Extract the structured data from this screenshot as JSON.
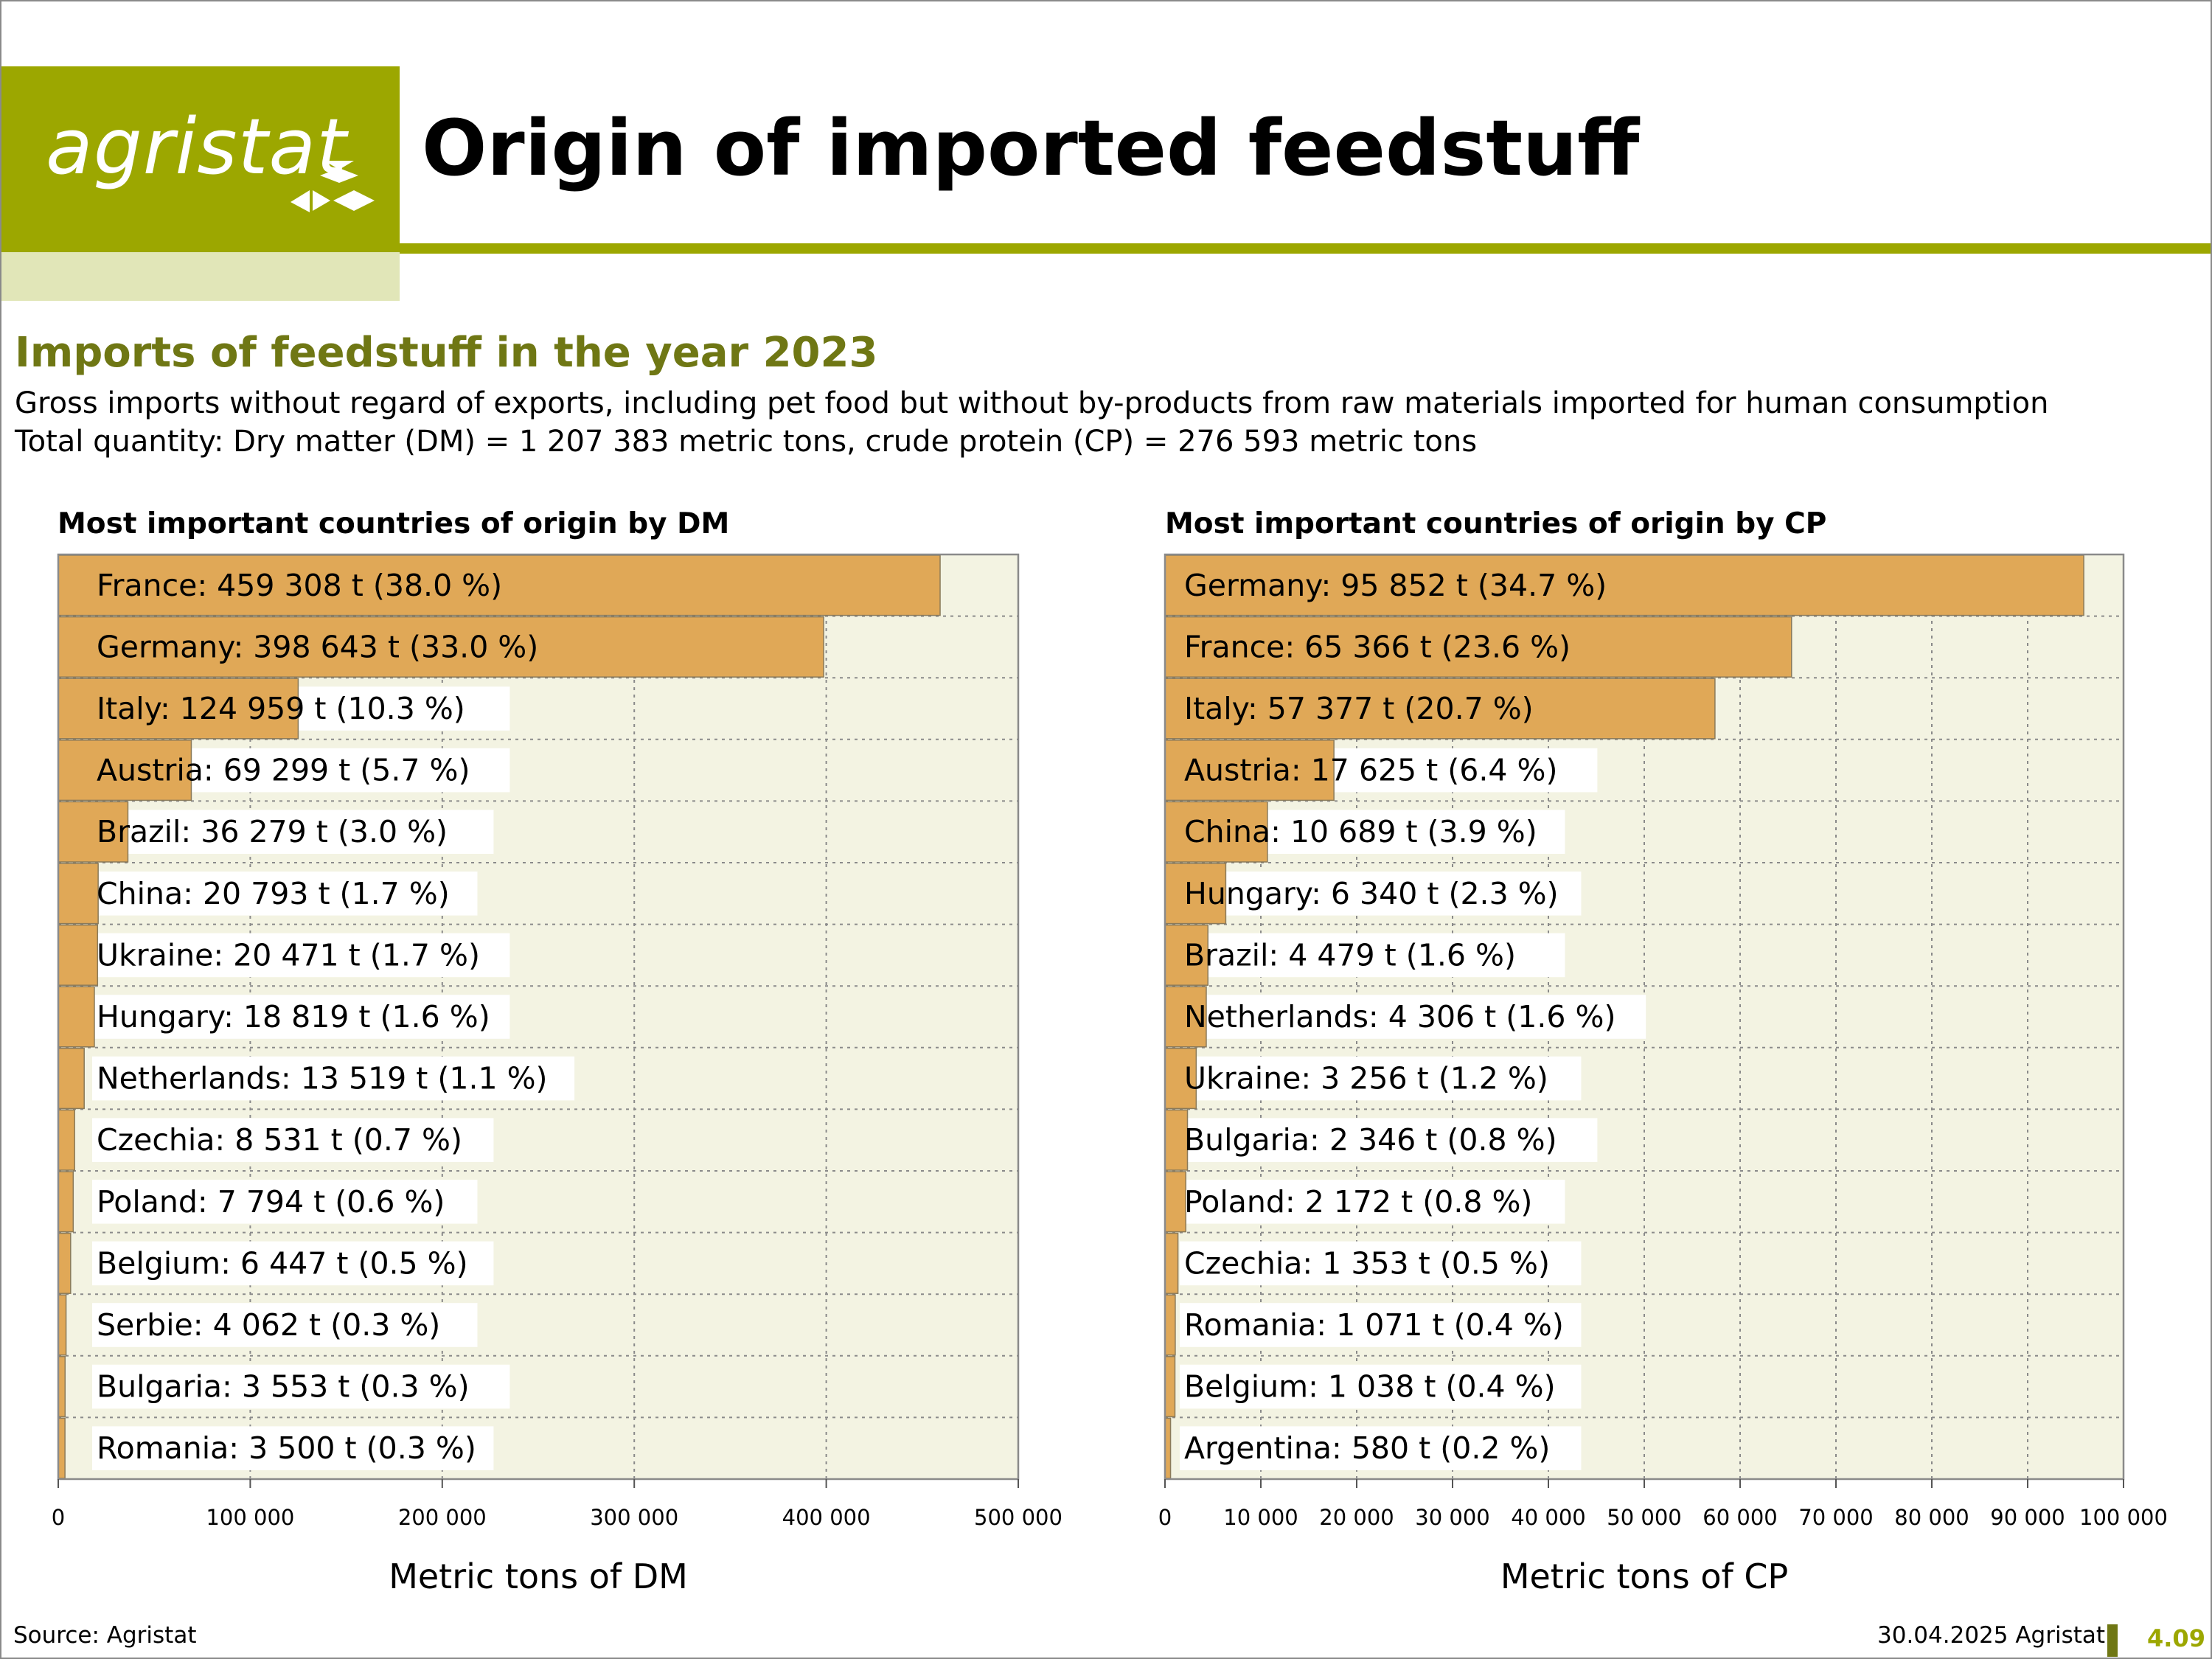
{
  "header": {
    "logo_text": "agristat",
    "title": "Origin of imported feedstuff"
  },
  "section": {
    "subtitle": "Imports of feedstuff in the year 2023",
    "line1": "Gross imports without regard of exports, including pet food but without by-products from raw materials imported for human consumption",
    "line2": "Total quantity: Dry matter (DM) = 1 207 383 metric tons, crude protein (CP) = 276 593 metric tons"
  },
  "colors": {
    "brand_green": "#9ca700",
    "brand_dark_green": "#6f7714",
    "bar_fill": "#e0a857",
    "plot_background": "#f3f3e2"
  },
  "chart_data": [
    {
      "type": "bar",
      "orientation": "horizontal",
      "title": "Most important countries of origin by DM",
      "xlabel": "Metric tons of DM",
      "xlim": [
        0,
        500000
      ],
      "ticks": [
        "0",
        "100 000",
        "200 000",
        "300 000",
        "400 000",
        "500 000"
      ],
      "grid": true,
      "categories": [
        "France",
        "Germany",
        "Italy",
        "Austria",
        "Brazil",
        "China",
        "Ukraine",
        "Hungary",
        "Netherlands",
        "Czechia",
        "Poland",
        "Belgium",
        "Serbie",
        "Bulgaria",
        "Romania"
      ],
      "values": [
        459308,
        398643,
        124959,
        69299,
        36279,
        20793,
        20471,
        18819,
        13519,
        8531,
        7794,
        6447,
        4062,
        3553,
        3500
      ],
      "labels": [
        "France: 459 308 t (38.0 %)",
        "Germany: 398 643 t (33.0 %)",
        "Italy: 124 959 t (10.3 %)",
        "Austria: 69 299 t (5.7 %)",
        "Brazil: 36 279 t (3.0 %)",
        "China: 20 793 t (1.7 %)",
        "Ukraine: 20 471 t (1.7 %)",
        "Hungary: 18 819 t (1.6 %)",
        "Netherlands: 13 519 t (1.1 %)",
        "Czechia: 8 531 t (0.7 %)",
        "Poland: 7 794 t (0.6 %)",
        "Belgium: 6 447 t (0.5 %)",
        "Serbie: 4 062 t (0.3 %)",
        "Bulgaria: 3 553 t (0.3 %)",
        "Romania: 3 500 t (0.3 %)"
      ]
    },
    {
      "type": "bar",
      "orientation": "horizontal",
      "title": "Most important countries of origin by CP",
      "xlabel": "Metric tons of CP",
      "xlim": [
        0,
        100000
      ],
      "ticks": [
        "0",
        "10 000",
        "20 000",
        "30 000",
        "40 000",
        "50 000",
        "60 000",
        "70 000",
        "80 000",
        "90 000",
        "100 000"
      ],
      "grid": true,
      "categories": [
        "Germany",
        "France",
        "Italy",
        "Austria",
        "China",
        "Hungary",
        "Brazil",
        "Netherlands",
        "Ukraine",
        "Bulgaria",
        "Poland",
        "Czechia",
        "Romania",
        "Belgium",
        "Argentina"
      ],
      "values": [
        95852,
        65366,
        57377,
        17625,
        10689,
        6340,
        4479,
        4306,
        3256,
        2346,
        2172,
        1353,
        1071,
        1038,
        580
      ],
      "labels": [
        "Germany: 95 852 t (34.7 %)",
        "France: 65 366 t (23.6 %)",
        "Italy: 57 377 t (20.7 %)",
        "Austria: 17 625 t (6.4 %)",
        "China: 10 689 t (3.9 %)",
        "Hungary: 6 340 t (2.3 %)",
        "Brazil: 4 479 t (1.6 %)",
        "Netherlands: 4 306 t (1.6 %)",
        "Ukraine: 3 256 t (1.2 %)",
        "Bulgaria: 2 346 t (0.8 %)",
        "Poland: 2 172 t (0.8 %)",
        "Czechia: 1 353 t (0.5 %)",
        "Romania: 1 071 t (0.4 %)",
        "Belgium: 1 038 t (0.4 %)",
        "Argentina: 580 t (0.2 %)"
      ]
    }
  ],
  "footer": {
    "source": "Source: Agristat",
    "date": "30.04.2025 Agristat",
    "page": "4.09"
  }
}
